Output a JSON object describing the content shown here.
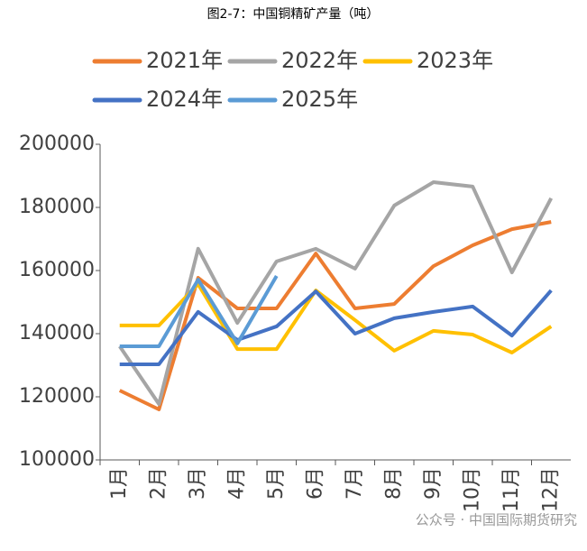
{
  "chart_data": {
    "type": "line",
    "title": "图2-7：中国铜精矿产量（吨）",
    "categories": [
      "1月",
      "2月",
      "3月",
      "4月",
      "5月",
      "6月",
      "7月",
      "8月",
      "9月",
      "10月",
      "11月",
      "12月"
    ],
    "series": [
      {
        "name": "2021年",
        "color": "#ed7d31",
        "values": [
          122000,
          116000,
          157700,
          148000,
          148000,
          165400,
          148000,
          149400,
          161400,
          168000,
          173100,
          175400
        ]
      },
      {
        "name": "2022年",
        "color": "#a5a5a5",
        "values": [
          136000,
          117700,
          166900,
          143400,
          162900,
          166900,
          160600,
          180600,
          188000,
          186600,
          159400,
          182900
        ]
      },
      {
        "name": "2023年",
        "color": "#ffc000",
        "values": [
          142600,
          142600,
          155700,
          135100,
          135100,
          153700,
          144300,
          134600,
          140900,
          139700,
          134000,
          142300
        ]
      },
      {
        "name": "2024年",
        "color": "#4472c4",
        "values": [
          130300,
          130300,
          146900,
          138000,
          142300,
          153400,
          140000,
          144900,
          146900,
          148600,
          139400,
          153700
        ]
      },
      {
        "name": "2025年",
        "color": "#5b9bd5",
        "values": [
          136000,
          136000,
          157100,
          136900,
          158300,
          null,
          null,
          null,
          null,
          null,
          null,
          null
        ]
      }
    ],
    "ylim": [
      100000,
      200000
    ],
    "yticks": [
      100000,
      120000,
      140000,
      160000,
      180000,
      200000
    ],
    "grid": false,
    "annotation": "公众号 · 中国国际期货研究"
  }
}
